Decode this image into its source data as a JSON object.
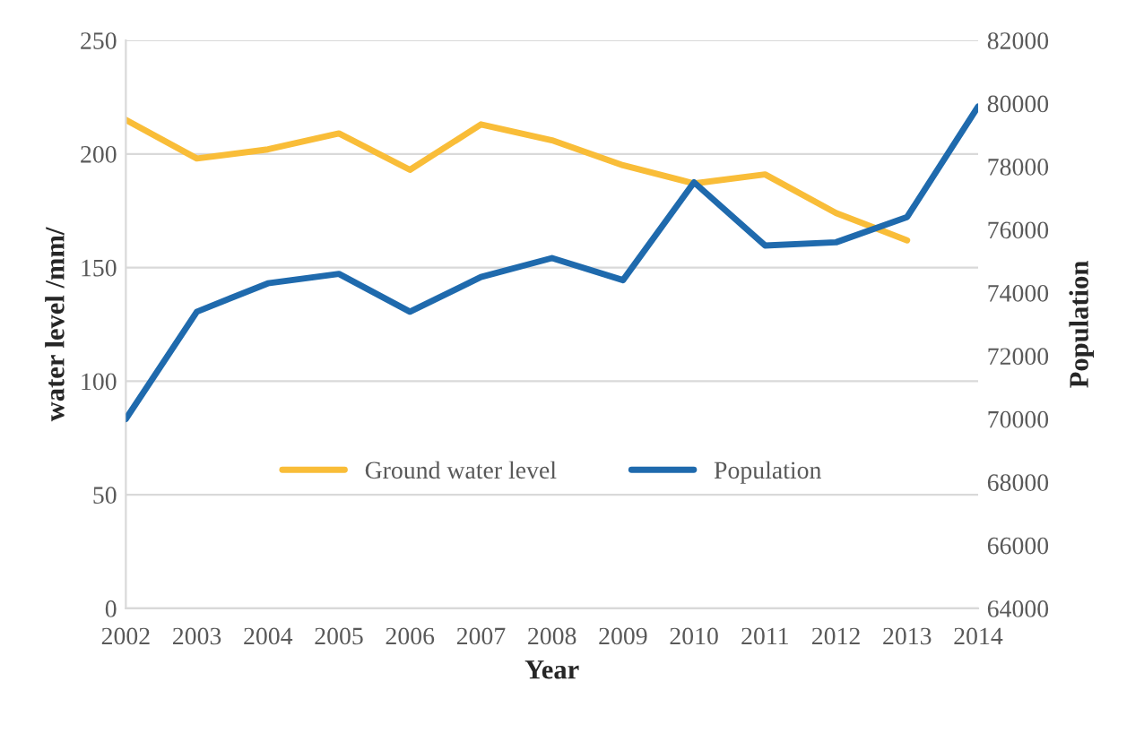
{
  "chart_data": {
    "type": "line",
    "xlabel": "Year",
    "ylabel": "water level /mm/",
    "y2label": "Population",
    "categories": [
      "2002",
      "2003",
      "2004",
      "2005",
      "2006",
      "2007",
      "2008",
      "2009",
      "2010",
      "2011",
      "2012",
      "2013",
      "2014"
    ],
    "series": [
      {
        "name": "Ground water level",
        "color": "#f9bd38",
        "values": [
          215,
          198,
          202,
          209,
          193,
          213,
          206,
          195,
          187,
          191,
          174,
          162,
          null
        ]
      },
      {
        "name": "Population",
        "color": "#1f6aad",
        "axis": "y2",
        "values": [
          70000,
          73400,
          74300,
          74600,
          73400,
          74500,
          75100,
          74400,
          77500,
          75500,
          75600,
          76400,
          79900
        ]
      }
    ],
    "ylim": [
      0,
      250
    ],
    "yticks": [
      0,
      50,
      100,
      150,
      200,
      250
    ],
    "y2lim": [
      64000,
      82000
    ],
    "y2ticks": [
      64000,
      66000,
      68000,
      70000,
      72000,
      74000,
      76000,
      78000,
      80000,
      82000
    ],
    "grid": "y",
    "legend": "bottom",
    "marker": "none",
    "line_style": "solid"
  }
}
